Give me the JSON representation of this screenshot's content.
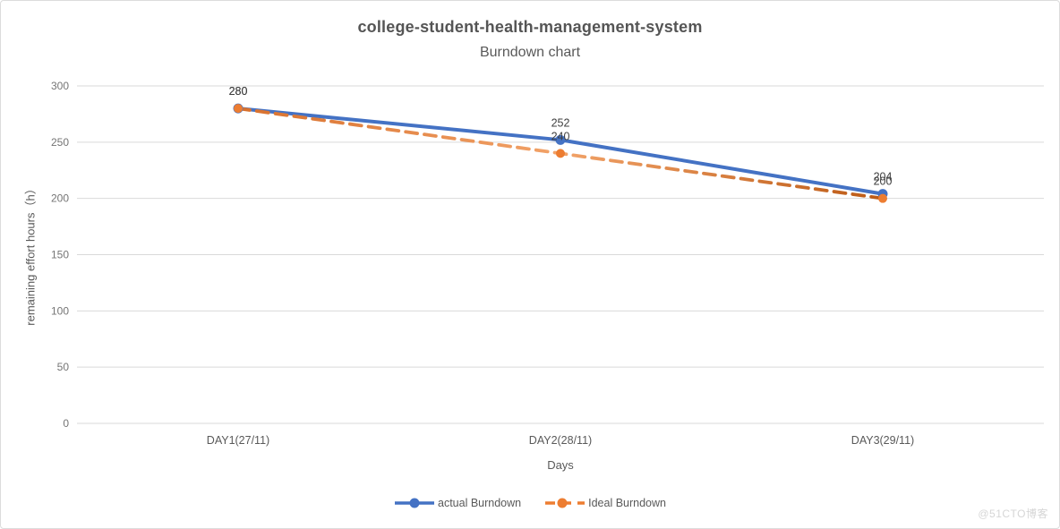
{
  "title": "college-student-health-management-system",
  "subtitle": "Burndown chart",
  "watermark": "@51CTO博客",
  "chart_data": {
    "type": "line",
    "title": "college-student-health-management-system",
    "subtitle": "Burndown chart",
    "categories": [
      "DAY1(27/11)",
      "DAY2(28/11)",
      "DAY3(29/11)"
    ],
    "series": [
      {
        "name": "actual Burndown",
        "values": [
          280,
          252,
          204
        ],
        "color": "#4472C4",
        "style": "solid"
      },
      {
        "name": "Ideal Burndown",
        "values": [
          280,
          240,
          200
        ],
        "color": "#ED7D31",
        "style": "dashed",
        "gradient": [
          "#D8702C",
          "#F2A369",
          "#BC5A15"
        ]
      }
    ],
    "xlabel": "Days",
    "ylabel": "remaining effort hours（h）",
    "ylim": [
      0,
      300
    ],
    "yticks": [
      0,
      50,
      100,
      150,
      200,
      250,
      300
    ],
    "grid": "horizontal",
    "legend_position": "bottom",
    "data_labels": true
  },
  "colors": {
    "actual": "#4472C4",
    "ideal": "#ED7D31",
    "gridline": "#D9D9D9",
    "tick_text": "#757575",
    "axis_text": "#595959",
    "title_text": "#555555",
    "data_label_text": "#3F3F3F",
    "border": "#DCDCDC",
    "watermark": "#D6D6D6"
  }
}
